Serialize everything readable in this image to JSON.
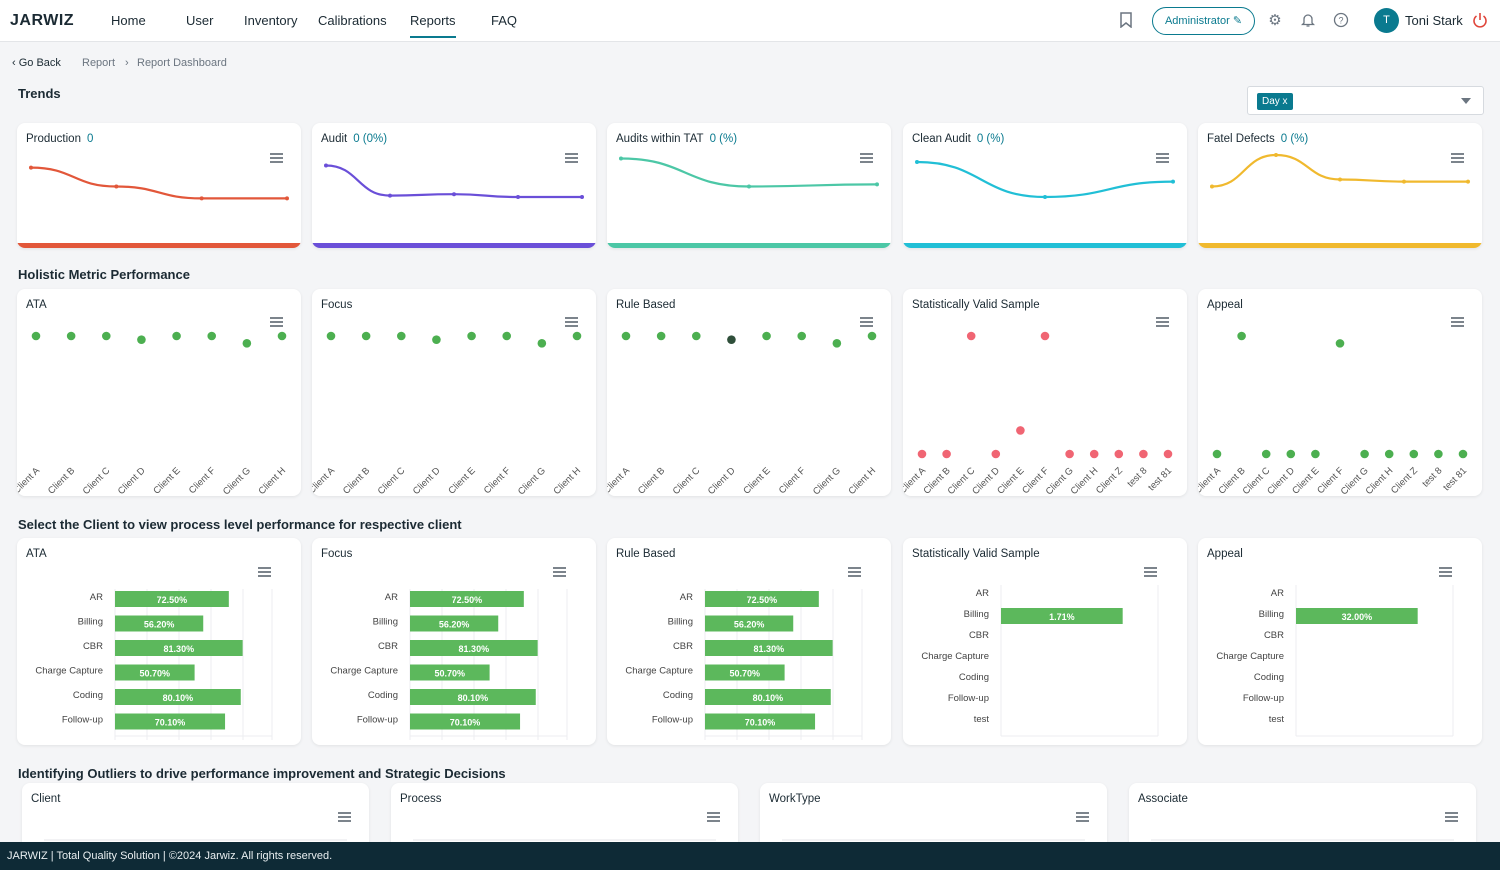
{
  "header": {
    "logo": "JARWIZ",
    "nav": [
      "Home",
      "User",
      "Inventory",
      "Calibrations",
      "Reports",
      "FAQ"
    ],
    "active_nav": "Reports",
    "role_label": "Administrator",
    "avatar_initial": "T",
    "user_name": "Toni Stark"
  },
  "breadcrumb": {
    "back": "Go Back",
    "items": [
      "Report",
      "Report Dashboard"
    ]
  },
  "trends": {
    "title": "Trends",
    "filter_chip": "Day x",
    "cards": [
      {
        "title": "Production",
        "value": "0",
        "color": "#e2573a",
        "values": [
          0.82,
          0.55,
          0.38,
          0.38
        ]
      },
      {
        "title": "Audit",
        "value": "0 (0%)",
        "color": "#6a4fd8",
        "values": [
          0.85,
          0.42,
          0.44,
          0.4,
          0.4
        ]
      },
      {
        "title": "Audits within TAT",
        "value": "0 (%)",
        "color": "#4cc7a6",
        "values": [
          0.95,
          0.55,
          0.58
        ]
      },
      {
        "title": "Clean Audit",
        "value": "0 (%)",
        "color": "#21bfd6",
        "values": [
          0.9,
          0.4,
          0.62
        ]
      },
      {
        "title": "Fatel Defects",
        "value": "0 (%)",
        "color": "#f0b92e",
        "values": [
          0.55,
          1.0,
          0.65,
          0.62,
          0.62
        ]
      }
    ]
  },
  "holistic": {
    "title": "Holistic Metric Performance",
    "cards": [
      {
        "title": "ATA",
        "labels": [
          "Client A",
          "Client B",
          "Client C",
          "Client D",
          "Client E",
          "Client F",
          "Client G",
          "Client H"
        ],
        "values": [
          97,
          97,
          97,
          94,
          97,
          97,
          91,
          97
        ],
        "colors": [
          "#4caf50",
          "#4caf50",
          "#4caf50",
          "#4caf50",
          "#4caf50",
          "#4caf50",
          "#4caf50",
          "#4caf50"
        ]
      },
      {
        "title": "Focus",
        "labels": [
          "Client A",
          "Client B",
          "Client C",
          "Client D",
          "Client E",
          "Client F",
          "Client G",
          "Client H"
        ],
        "values": [
          97,
          97,
          97,
          94,
          97,
          97,
          91,
          97
        ],
        "colors": [
          "#4caf50",
          "#4caf50",
          "#4caf50",
          "#4caf50",
          "#4caf50",
          "#4caf50",
          "#4caf50",
          "#4caf50"
        ]
      },
      {
        "title": "Rule Based",
        "labels": [
          "Client A",
          "Client B",
          "Client C",
          "Client D",
          "Client E",
          "Client F",
          "Client G",
          "Client H"
        ],
        "values": [
          97,
          97,
          97,
          94,
          97,
          97,
          91,
          97
        ],
        "colors": [
          "#4caf50",
          "#4caf50",
          "#4caf50",
          "#2f4f3a",
          "#4caf50",
          "#4caf50",
          "#4caf50",
          "#4caf50"
        ]
      },
      {
        "title": "Statistically Valid Sample",
        "labels": [
          "Client A",
          "Client B",
          "Client C",
          "Client D",
          "Client E",
          "Client F",
          "Client G",
          "Client H",
          "Client Z",
          "test 8",
          "test 81"
        ],
        "values": [
          0,
          0,
          10,
          0,
          2,
          10,
          0,
          0,
          0,
          0,
          0
        ],
        "colors": [
          "#f06573",
          "#f06573",
          "#f06573",
          "#f06573",
          "#f06573",
          "#f06573",
          "#f06573",
          "#f06573",
          "#f06573",
          "#f06573",
          "#f06573"
        ]
      },
      {
        "title": "Appeal",
        "labels": [
          "Client A",
          "Client B",
          "Client C",
          "Client D",
          "Client E",
          "Client F",
          "Client G",
          "Client H",
          "Client Z",
          "test 8",
          "test 81"
        ],
        "values": [
          0,
          16,
          0,
          0,
          0,
          15,
          0,
          0,
          0,
          0,
          0
        ],
        "colors": [
          "#4caf50",
          "#4caf50",
          "#4caf50",
          "#4caf50",
          "#4caf50",
          "#4caf50",
          "#4caf50",
          "#4caf50",
          "#4caf50",
          "#4caf50",
          "#4caf50"
        ]
      }
    ]
  },
  "process": {
    "title": "Select the Client to view process level performance for respective client",
    "cards": [
      {
        "title": "ATA",
        "labels": [
          "AR",
          "Billing",
          "CBR",
          "Charge Capture",
          "Coding",
          "Follow-up"
        ],
        "values": [
          72.5,
          56.2,
          81.3,
          50.7,
          80.1,
          70.1
        ],
        "texts": [
          "72.50%",
          "56.20%",
          "81.30%",
          "50.70%",
          "80.10%",
          "70.10%"
        ]
      },
      {
        "title": "Focus",
        "labels": [
          "AR",
          "Billing",
          "CBR",
          "Charge Capture",
          "Coding",
          "Follow-up"
        ],
        "values": [
          72.5,
          56.2,
          81.3,
          50.7,
          80.1,
          70.1
        ],
        "texts": [
          "72.50%",
          "56.20%",
          "81.30%",
          "50.70%",
          "80.10%",
          "70.10%"
        ]
      },
      {
        "title": "Rule Based",
        "labels": [
          "AR",
          "Billing",
          "CBR",
          "Charge Capture",
          "Coding",
          "Follow-up"
        ],
        "values": [
          72.5,
          56.2,
          81.3,
          50.7,
          80.1,
          70.1
        ],
        "texts": [
          "72.50%",
          "56.20%",
          "81.30%",
          "50.70%",
          "80.10%",
          "70.10%"
        ]
      },
      {
        "title": "Statistically Valid Sample",
        "labels": [
          "AR",
          "Billing",
          "CBR",
          "Charge Capture",
          "Coding",
          "Follow-up",
          "test"
        ],
        "values": [
          0,
          1.71,
          0,
          0,
          0,
          0,
          0
        ],
        "texts": [
          "",
          "1.71%",
          "",
          "",
          "",
          "",
          ""
        ]
      },
      {
        "title": "Appeal",
        "labels": [
          "AR",
          "Billing",
          "CBR",
          "Charge Capture",
          "Coding",
          "Follow-up",
          "test"
        ],
        "values": [
          0,
          32.0,
          0,
          0,
          0,
          0,
          0
        ],
        "texts": [
          "",
          "32.00%",
          "",
          "",
          "",
          "",
          ""
        ]
      }
    ]
  },
  "outliers": {
    "title": "Identifying Outliers to drive performance improvement and Strategic Decisions",
    "cards": [
      "Client",
      "Process",
      "WorkType",
      "Associate"
    ]
  },
  "footer": "JARWIZ  |  Total Quality Solution  |  ©2024 Jarwiz. All rights reserved."
}
